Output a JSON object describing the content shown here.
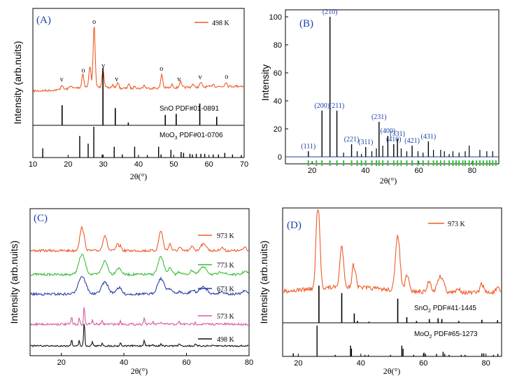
{
  "colors": {
    "orange": "#f05a28",
    "green": "#3cbc3c",
    "blue": "#2b3fa8",
    "pink": "#d65aa8",
    "black": "#111111",
    "label": "#1a3fa8"
  },
  "chart_data": [
    {
      "panel": "(A)",
      "type": "line",
      "xlim": [
        10,
        70
      ],
      "xticks": [
        10,
        20,
        30,
        40,
        50,
        60,
        70
      ],
      "ylabel": "Intensity (arb.nuits)",
      "xlabel": "2θ(°)",
      "series": [
        {
          "name": "498 K",
          "color": "#f05a28"
        }
      ],
      "pattern_peaks": [
        [
          18.2,
          3
        ],
        [
          20.7,
          2
        ],
        [
          24.2,
          9
        ],
        [
          26.2,
          14
        ],
        [
          27.4,
          40
        ],
        [
          29.9,
          12
        ],
        [
          32.7,
          2
        ],
        [
          34.1,
          4
        ],
        [
          37.2,
          3
        ],
        [
          39.0,
          2
        ],
        [
          41.6,
          2
        ],
        [
          46.6,
          9
        ],
        [
          49.6,
          2
        ],
        [
          51.9,
          4
        ],
        [
          55.4,
          2
        ],
        [
          57.7,
          3
        ],
        [
          61.2,
          2
        ],
        [
          64.8,
          3
        ]
      ],
      "markers": [
        {
          "x": 18.2,
          "symbol": "v"
        },
        {
          "x": 24.3,
          "symbol": "o"
        },
        {
          "x": 27.4,
          "symbol": "o"
        },
        {
          "x": 30.0,
          "symbol": "v"
        },
        {
          "x": 33.8,
          "symbol": "v"
        },
        {
          "x": 46.5,
          "symbol": "o"
        },
        {
          "x": 51.5,
          "symbol": "v"
        },
        {
          "x": 57.5,
          "symbol": "v"
        },
        {
          "x": 65.0,
          "symbol": "o"
        }
      ],
      "references": [
        {
          "label": "SnO PDF#01-0891",
          "lines": [
            [
              18.3,
              0.35
            ],
            [
              29.9,
              1.0
            ],
            [
              33.4,
              0.3
            ],
            [
              37.1,
              0.05
            ],
            [
              47.6,
              0.18
            ],
            [
              50.7,
              0.2
            ],
            [
              57.4,
              0.38
            ],
            [
              62.2,
              0.15
            ]
          ]
        },
        {
          "label": "MoO₃ PDF#01-0706",
          "lines": [
            [
              12.8,
              0.3
            ],
            [
              23.3,
              0.7
            ],
            [
              25.7,
              0.45
            ],
            [
              27.3,
              1.0
            ],
            [
              29.7,
              0.1
            ],
            [
              33.1,
              0.35
            ],
            [
              35.4,
              0.1
            ],
            [
              38.9,
              0.35
            ],
            [
              42.5,
              0.08
            ],
            [
              45.7,
              0.35
            ],
            [
              46.4,
              0.1
            ],
            [
              49.2,
              0.25
            ],
            [
              52.1,
              0.18
            ],
            [
              52.8,
              0.15
            ],
            [
              54.6,
              0.12
            ],
            [
              55.3,
              0.1
            ],
            [
              56.4,
              0.12
            ],
            [
              57.7,
              0.12
            ],
            [
              58.8,
              0.12
            ],
            [
              61.2,
              0.1
            ],
            [
              62.7,
              0.1
            ],
            [
              64.5,
              0.15
            ],
            [
              66.7,
              0.1
            ],
            [
              69.2,
              0.08
            ]
          ]
        }
      ]
    },
    {
      "panel": "(B)",
      "type": "bar",
      "xlim": [
        10,
        90
      ],
      "ylim": [
        -5,
        105
      ],
      "xticks": [
        20,
        40,
        60,
        80
      ],
      "yticks": [
        0,
        20,
        40,
        60,
        80,
        100
      ],
      "ylabel": "Intensity",
      "xlabel": "2θ(°)",
      "peaks": [
        {
          "x": 18.6,
          "y": 4,
          "hkl": "(111)"
        },
        {
          "x": 23.7,
          "y": 33,
          "hkl": "(200)"
        },
        {
          "x": 26.7,
          "y": 100,
          "hkl": "(210)"
        },
        {
          "x": 29.3,
          "y": 33,
          "hkl": "(211)"
        },
        {
          "x": 34.8,
          "y": 9,
          "hkl": "(221)"
        },
        {
          "x": 40.1,
          "y": 7,
          "hkl": "(311)"
        },
        {
          "x": 45.1,
          "y": 25,
          "hkl": "(231)"
        },
        {
          "x": 48.4,
          "y": 15,
          "hkl": "(400)"
        },
        {
          "x": 50.6,
          "y": 9,
          "hkl": "(410)"
        },
        {
          "x": 52.0,
          "y": 13,
          "hkl": "(331)"
        },
        {
          "x": 57.5,
          "y": 8,
          "hkl": "(421)"
        },
        {
          "x": 63.6,
          "y": 11,
          "hkl": "(431)"
        }
      ],
      "extra_peaks": [
        [
          31.8,
          3
        ],
        [
          36.9,
          4
        ],
        [
          42.4,
          4
        ],
        [
          44.1,
          6
        ],
        [
          46.5,
          8
        ],
        [
          53.4,
          6
        ],
        [
          55.5,
          4
        ],
        [
          59.7,
          4
        ],
        [
          65.5,
          5
        ],
        [
          68.2,
          5
        ],
        [
          69.6,
          4
        ],
        [
          72.8,
          4
        ],
        [
          75.1,
          3
        ],
        [
          77.4,
          4
        ],
        [
          78.9,
          8
        ],
        [
          82.9,
          5
        ],
        [
          85.5,
          4
        ],
        [
          87.7,
          4
        ],
        [
          71.4,
          2
        ],
        [
          61.6,
          3
        ],
        [
          38.5,
          2
        ]
      ],
      "reference_ticks": [
        18.6,
        21.6,
        23.7,
        26.7,
        29.3,
        31.8,
        34.8,
        36.9,
        38.5,
        40.1,
        42.4,
        44.1,
        45.1,
        46.5,
        48.4,
        50.6,
        52.0,
        53.4,
        55.5,
        57.5,
        59.7,
        61.6,
        63.6,
        65.5,
        66.8,
        68.2,
        69.6,
        71.4,
        72.8,
        74.0,
        75.1,
        76.5,
        77.4,
        78.9,
        80.3,
        81.6,
        82.9,
        84.2,
        85.5,
        86.6,
        87.7,
        88.9
      ]
    },
    {
      "panel": "(C)",
      "type": "line",
      "xlim": [
        10,
        80
      ],
      "xticks": [
        20,
        40,
        60,
        80
      ],
      "ylabel": "Intensity (arb.nuits)",
      "xlabel": "2θ(°)",
      "series": [
        {
          "name": "973 K",
          "color": "#f05a28"
        },
        {
          "name": "773 K",
          "color": "#3cbc3c"
        },
        {
          "name": "673 K",
          "color": "#2b3fa8"
        },
        {
          "name": "573 K",
          "color": "#d65aa8"
        },
        {
          "name": "498 K",
          "color": "#111111"
        }
      ]
    },
    {
      "panel": "(D)",
      "type": "line",
      "xlim": [
        15,
        85
      ],
      "xticks": [
        20,
        40,
        60,
        80
      ],
      "ylabel": "Intensity (arb.nuits)",
      "xlabel": "2θ(°)",
      "series": [
        {
          "name": "973 K",
          "color": "#f05a28"
        }
      ],
      "references": [
        {
          "label": "SnO₂ PDF#41-1445",
          "lines": [
            [
              26.6,
              1.0
            ],
            [
              33.9,
              0.8
            ],
            [
              37.9,
              0.25
            ],
            [
              38.9,
              0.05
            ],
            [
              42.6,
              0.03
            ],
            [
              51.8,
              0.65
            ],
            [
              54.7,
              0.15
            ],
            [
              57.8,
              0.05
            ],
            [
              61.9,
              0.1
            ],
            [
              64.7,
              0.12
            ],
            [
              65.9,
              0.1
            ],
            [
              71.3,
              0.05
            ],
            [
              78.7,
              0.08
            ],
            [
              83.7,
              0.07
            ]
          ]
        },
        {
          "label": "MoO₂ PDF#65-1273",
          "lines": [
            [
              18.4,
              0.1
            ],
            [
              26.0,
              1.0
            ],
            [
              31.8,
              0.05
            ],
            [
              36.7,
              0.35
            ],
            [
              37.0,
              0.25
            ],
            [
              41.3,
              0.05
            ],
            [
              42.4,
              0.05
            ],
            [
              49.5,
              0.05
            ],
            [
              53.1,
              0.35
            ],
            [
              53.5,
              0.25
            ],
            [
              56.9,
              0.05
            ],
            [
              60.2,
              0.12
            ],
            [
              60.7,
              0.08
            ],
            [
              64.2,
              0.08
            ],
            [
              66.3,
              0.15
            ],
            [
              66.8,
              0.08
            ],
            [
              68.2,
              0.05
            ],
            [
              72.1,
              0.05
            ],
            [
              73.3,
              0.05
            ],
            [
              78.7,
              0.1
            ],
            [
              79.3,
              0.1
            ],
            [
              82.4,
              0.05
            ],
            [
              83.8,
              0.08
            ]
          ]
        }
      ]
    }
  ],
  "labels": {
    "a_panel": "(A)",
    "a_ylabel": "Intensity (arb.nuits)",
    "a_xlabel": "2θ(°)",
    "a_legend": "498 K",
    "a_ref1": "SnO PDF#01-0891",
    "a_ref2_pre": "MoO",
    "a_ref2_sub": "3",
    "a_ref2_post": " PDF#01-0706",
    "b_panel": "(B)",
    "b_ylabel": "Intensity",
    "b_xlabel": "2θ(°)",
    "c_panel": "(C)",
    "c_ylabel": "Intensity (arb.nuits)",
    "c_xlabel": "2θ(°)",
    "d_panel": "(D)",
    "d_ylabel": "Intensity (arb.nuits)",
    "d_xlabel": "2θ(°)",
    "d_legend": "973 K",
    "d_ref1_pre": "SnO",
    "d_ref1_sub": "2",
    "d_ref1_post": " PDF#41-1445",
    "d_ref2_pre": "MoO",
    "d_ref2_sub": "2",
    "d_ref2_post": " PDF#65-1273"
  }
}
